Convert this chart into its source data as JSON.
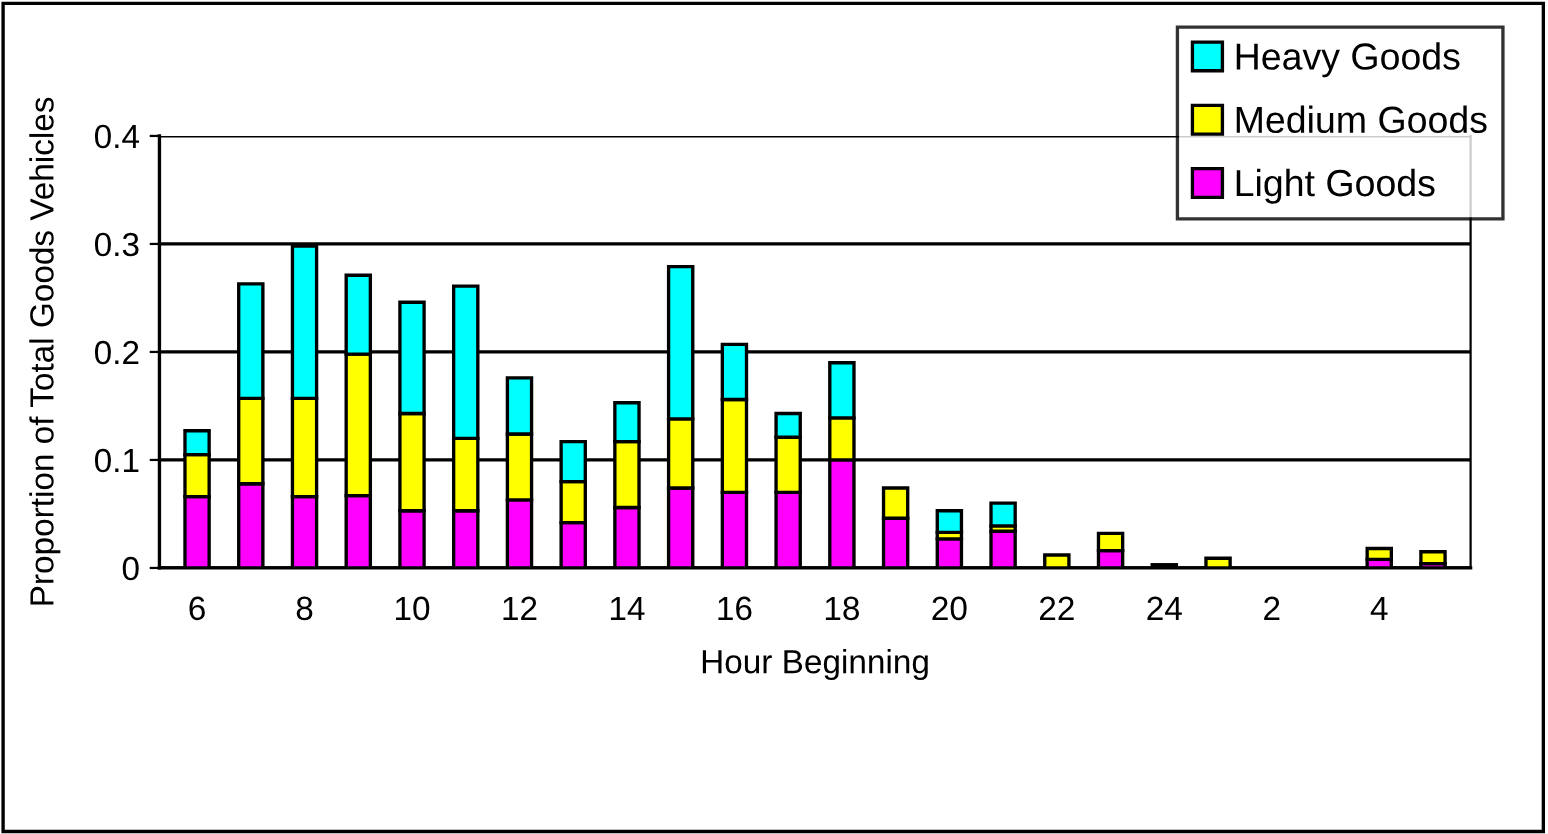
{
  "chart_data": {
    "type": "bar",
    "stacked": true,
    "xlabel": "Hour Beginning",
    "ylabel": "Proportion of Total Goods Vehicles",
    "categories": [
      "6",
      null,
      "8",
      null,
      "10",
      null,
      "12",
      null,
      "14",
      null,
      "16",
      null,
      "18",
      null,
      "20",
      null,
      "22",
      null,
      "24",
      null,
      "2",
      null,
      "4",
      null
    ],
    "series": [
      {
        "name": "Light Goods",
        "color": "#ff00ff",
        "values": [
          0.066,
          0.078,
          0.066,
          0.067,
          0.053,
          0.053,
          0.063,
          0.042,
          0.056,
          0.074,
          0.07,
          0.07,
          0.1,
          0.046,
          0.027,
          0.034,
          null,
          0.016,
          0.003,
          null,
          null,
          null,
          0.008,
          0.004
        ]
      },
      {
        "name": "Medium Goods",
        "color": "#ffff00",
        "values": [
          0.039,
          0.079,
          0.091,
          0.131,
          0.09,
          0.067,
          0.061,
          0.038,
          0.061,
          0.064,
          0.086,
          0.051,
          0.039,
          0.028,
          0.006,
          0.005,
          0.012,
          0.016,
          null,
          0.009,
          null,
          null,
          0.01,
          0.011
        ]
      },
      {
        "name": "Heavy Goods",
        "color": "#00ffff",
        "values": [
          0.022,
          0.106,
          0.141,
          0.073,
          0.103,
          0.141,
          0.052,
          0.037,
          0.036,
          0.141,
          0.051,
          0.022,
          0.051,
          null,
          0.02,
          0.021,
          null,
          null,
          null,
          null,
          null,
          null,
          null,
          null
        ]
      }
    ],
    "ylim": [
      0,
      0.4
    ],
    "yticks": [
      0,
      0.1,
      0.2,
      0.3,
      0.4
    ],
    "grid": "y",
    "legend": "top right"
  }
}
